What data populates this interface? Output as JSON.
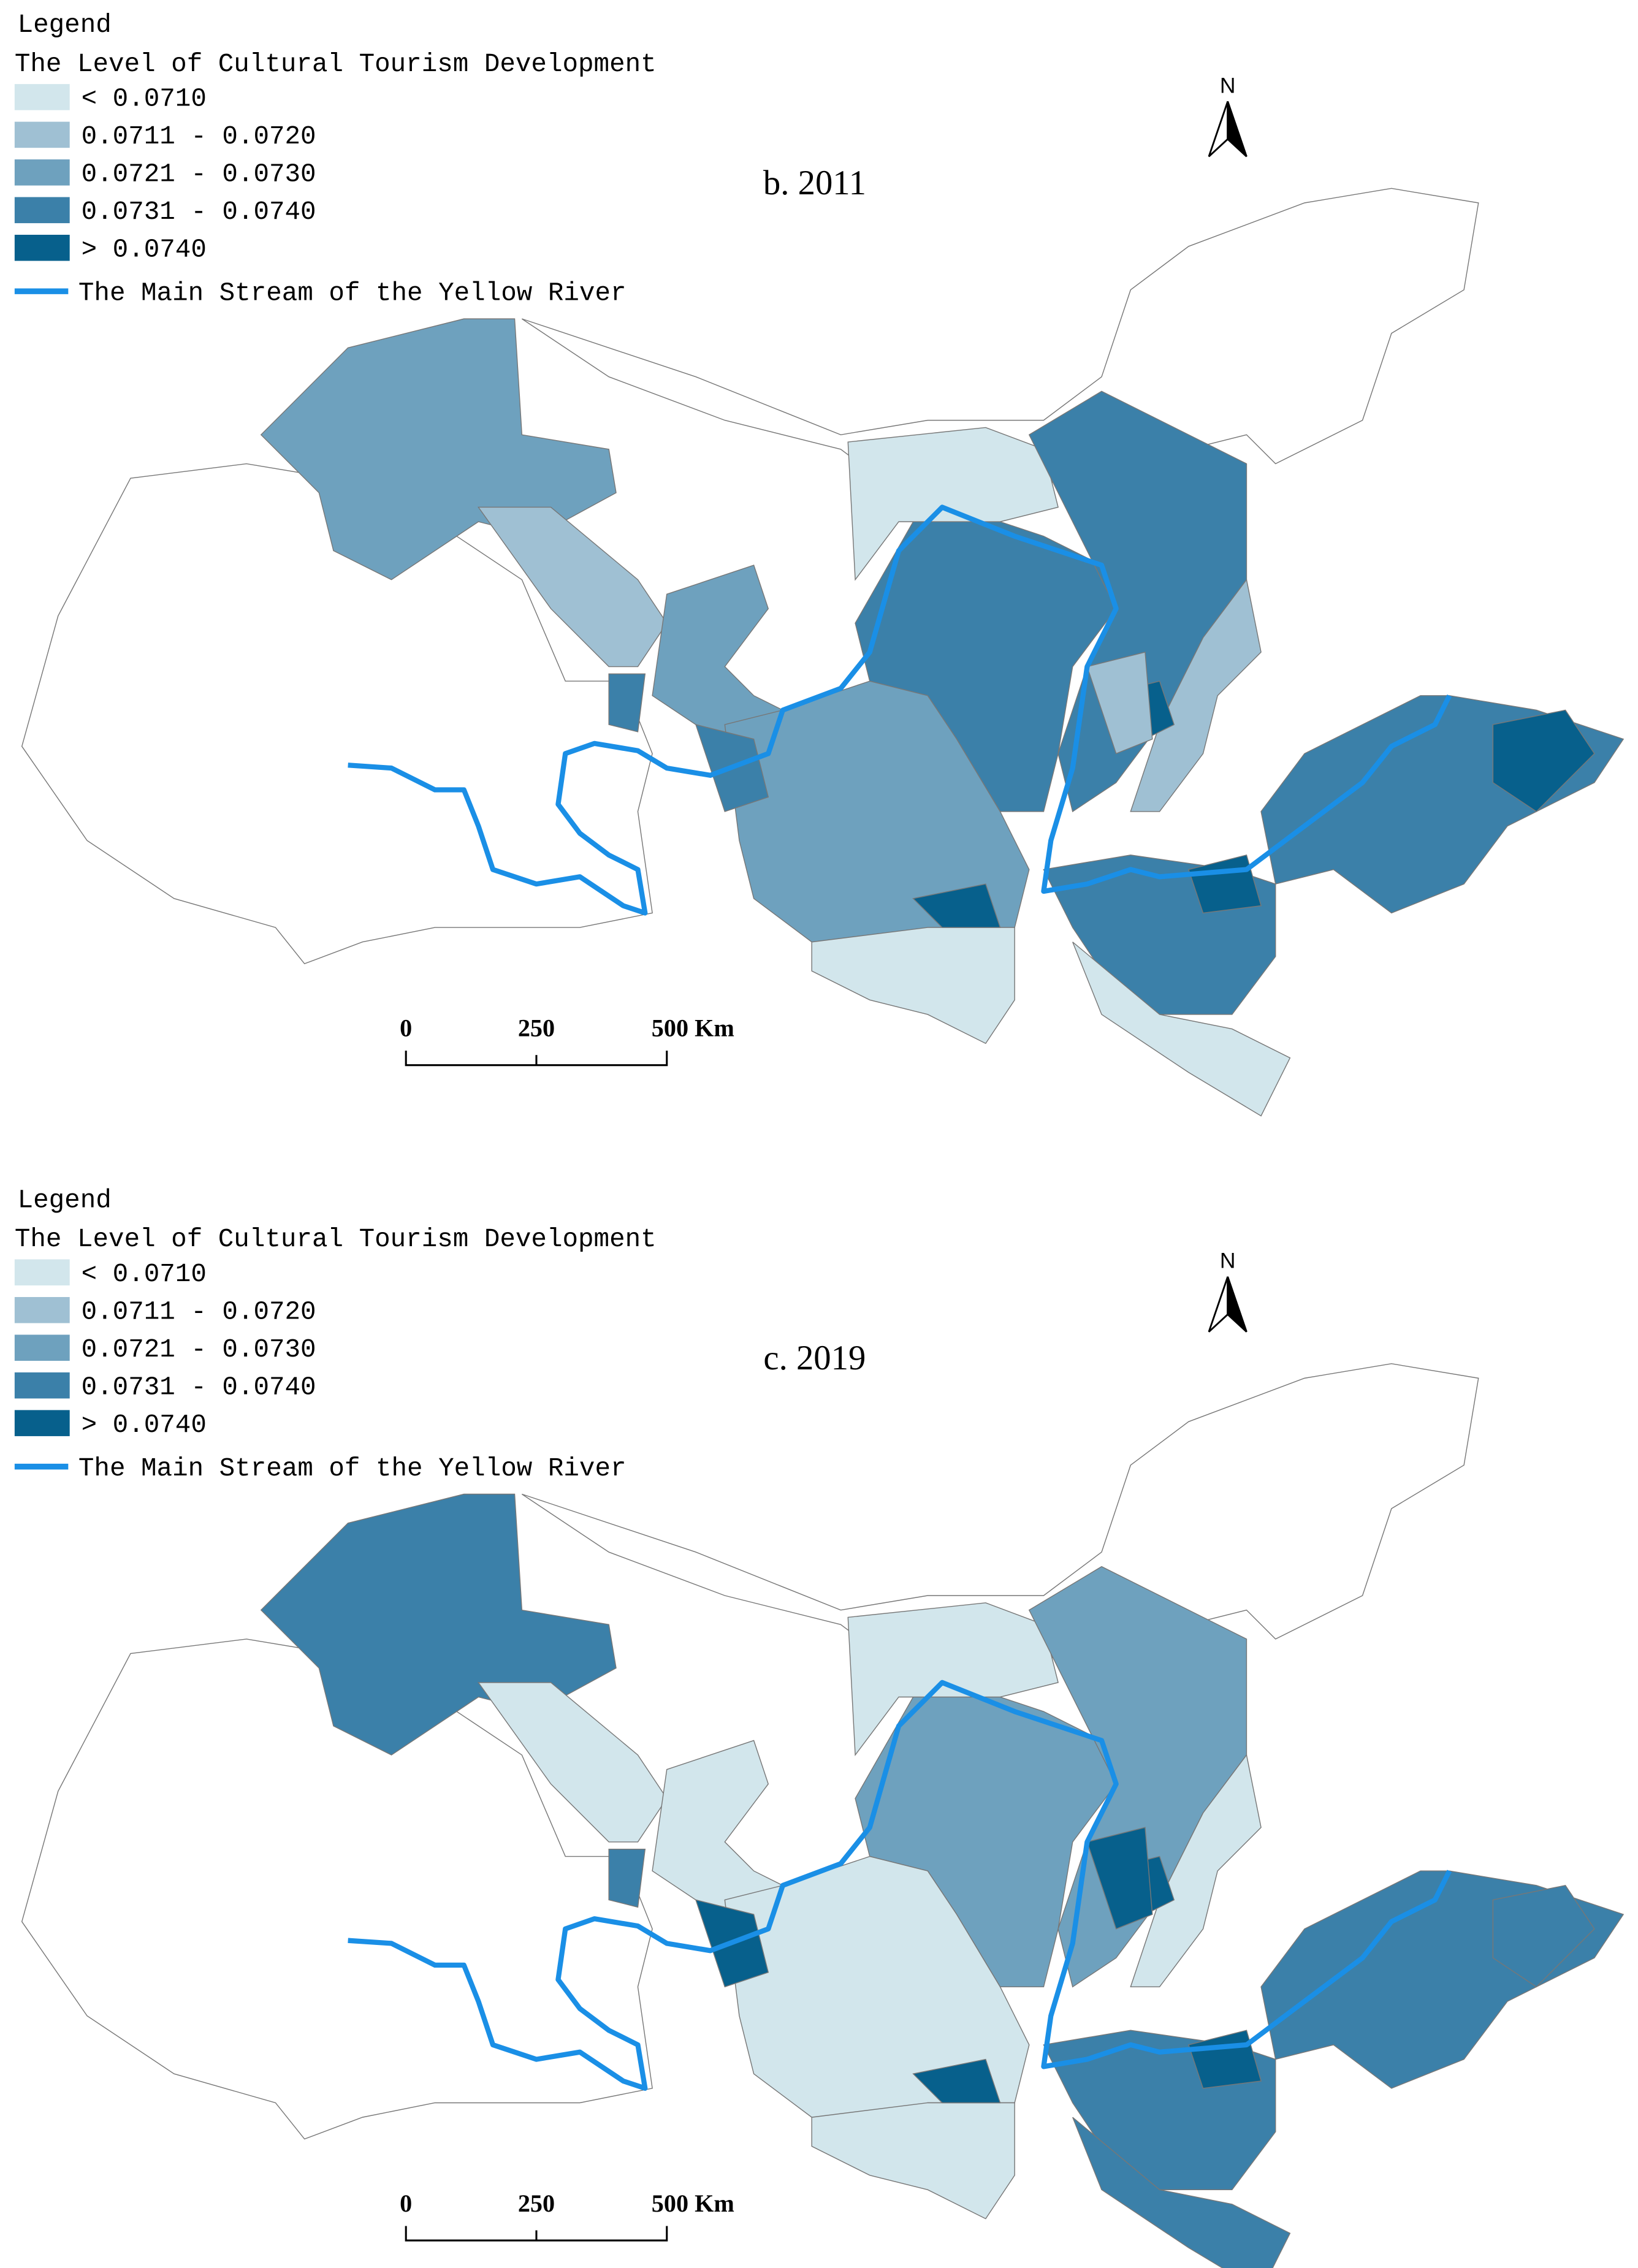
{
  "panels": [
    {
      "legend": {
        "heading": "Legend",
        "title": "The Level of Cultural Tourism Development",
        "classes": [
          {
            "label": "< 0.0710",
            "color": "#d2e6ec"
          },
          {
            "label": "0.0711 - 0.0720",
            "color": "#9fc0d3"
          },
          {
            "label": "0.0721 - 0.0730",
            "color": "#6ea1be"
          },
          {
            "label": "0.0731 - 0.0740",
            "color": "#3b80a9"
          },
          {
            "label": "> 0.0740",
            "color": "#07608c"
          }
        ],
        "river": {
          "label": "The Main Stream of the Yellow River",
          "color": "#1a8fe6"
        }
      },
      "title": "b. 2011",
      "north": "N",
      "scale": [
        "0",
        "250",
        "500 Km"
      ]
    },
    {
      "legend": {
        "heading": "Legend",
        "title": "The Level of Cultural Tourism Development",
        "classes": [
          {
            "label": "< 0.0710",
            "color": "#d2e6ec"
          },
          {
            "label": "0.0711 - 0.0720",
            "color": "#9fc0d3"
          },
          {
            "label": "0.0721 - 0.0730",
            "color": "#6ea1be"
          },
          {
            "label": "0.0731 - 0.0740",
            "color": "#3b80a9"
          },
          {
            "label": "> 0.0740",
            "color": "#07608c"
          }
        ],
        "river": {
          "label": "The Main Stream of the Yellow River",
          "color": "#1a8fe6"
        }
      },
      "title": "c. 2019",
      "north": "N",
      "scale": [
        "0",
        "250",
        "500 Km"
      ]
    }
  ]
}
